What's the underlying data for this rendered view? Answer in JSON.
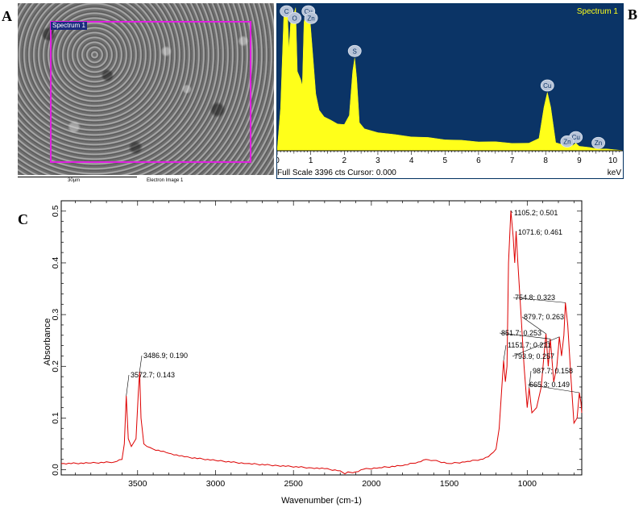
{
  "panel_labels": {
    "a": "A",
    "b": "B",
    "c": "C"
  },
  "sem": {
    "box_label": "Spectrum 1",
    "scale_bar_label": "30µm",
    "image_label": "Electron Image 1"
  },
  "colors": {
    "eds_background": "#0b3466",
    "eds_fill": "#ffff1a",
    "ftir_line": "#dd0000",
    "selection_box": "#e020e0"
  },
  "chart_data": [
    {
      "type": "area",
      "panel": "B",
      "title": "Spectrum 1",
      "xlabel": "keV",
      "xlim": [
        0,
        10.3
      ],
      "x_ticks": [
        0,
        1,
        2,
        3,
        4,
        5,
        6,
        7,
        8,
        9,
        10
      ],
      "footer": "Full Scale 3396 cts Cursor: 0.000",
      "peaks": [
        {
          "label": "C",
          "x": 0.28,
          "y": 1.0
        },
        {
          "label": "O",
          "x": 0.52,
          "y": 0.88
        },
        {
          "label": "Cu",
          "x": 0.93,
          "y": 1.0
        },
        {
          "label": "Zn",
          "x": 1.01,
          "y": 0.88
        },
        {
          "label": "S",
          "x": 2.31,
          "y": 0.65
        },
        {
          "label": "Cu",
          "x": 8.05,
          "y": 0.41
        },
        {
          "label": "Cu",
          "x": 8.9,
          "y": 0.05
        },
        {
          "label": "Zn",
          "x": 8.64,
          "y": 0.02
        },
        {
          "label": "Zn",
          "x": 9.57,
          "y": 0.01
        }
      ],
      "spectrum_x": [
        0.0,
        0.1,
        0.2,
        0.3,
        0.35,
        0.4,
        0.5,
        0.55,
        0.6,
        0.7,
        0.75,
        0.8,
        0.9,
        0.95,
        1.05,
        1.15,
        1.25,
        1.4,
        1.6,
        1.8,
        2.0,
        2.15,
        2.25,
        2.31,
        2.37,
        2.45,
        2.6,
        3.0,
        3.5,
        4.0,
        4.5,
        5.0,
        5.5,
        6.0,
        6.5,
        7.0,
        7.5,
        7.8,
        7.95,
        8.05,
        8.15,
        8.3,
        8.5,
        8.8,
        8.9,
        9.0,
        9.3,
        9.57,
        9.8,
        10.3
      ],
      "spectrum_y": [
        0.0,
        0.3,
        0.95,
        1.0,
        0.7,
        0.9,
        0.95,
        1.0,
        0.55,
        0.5,
        0.45,
        0.9,
        1.0,
        1.0,
        0.7,
        0.4,
        0.28,
        0.24,
        0.21,
        0.19,
        0.18,
        0.25,
        0.55,
        0.65,
        0.5,
        0.2,
        0.15,
        0.13,
        0.11,
        0.1,
        0.09,
        0.08,
        0.07,
        0.065,
        0.06,
        0.055,
        0.05,
        0.09,
        0.3,
        0.41,
        0.3,
        0.06,
        0.04,
        0.04,
        0.05,
        0.035,
        0.02,
        0.015,
        0.01,
        0.005
      ]
    },
    {
      "type": "line",
      "panel": "C",
      "xlabel": "Wavenumber (cm-1)",
      "ylabel": "Absorbance",
      "xlim": [
        3990,
        650
      ],
      "ylim": [
        -0.01,
        0.52
      ],
      "x_ticks": [
        3500,
        3000,
        2500,
        2000,
        1500,
        1000
      ],
      "y_ticks": [
        "0.0",
        "0.1",
        "0.2",
        "0.3",
        "0.4",
        "0.5"
      ],
      "annotations": [
        {
          "label": "3572.7; 0.143",
          "x": 3572.7,
          "y": 0.143
        },
        {
          "label": "3486.9; 0.190",
          "x": 3486.9,
          "y": 0.19
        },
        {
          "label": "1105.2; 0.501",
          "x": 1105.2,
          "y": 0.501
        },
        {
          "label": "1071.6; 0.461",
          "x": 1071.6,
          "y": 0.461
        },
        {
          "label": "754.8; 0.323",
          "x": 754.8,
          "y": 0.323
        },
        {
          "label": "879.7; 0.263",
          "x": 879.7,
          "y": 0.263
        },
        {
          "label": "851.7; 0.253",
          "x": 851.7,
          "y": 0.253
        },
        {
          "label": "1151.7; 0.211",
          "x": 1151.7,
          "y": 0.211
        },
        {
          "label": "793.9; 0.257",
          "x": 793.9,
          "y": 0.257
        },
        {
          "label": "987.7; 0.158",
          "x": 987.7,
          "y": 0.158
        },
        {
          "label": "665.3; 0.149",
          "x": 665.3,
          "y": 0.149
        }
      ],
      "series_x": [
        3990,
        3800,
        3650,
        3600,
        3585,
        3572.7,
        3560,
        3540,
        3510,
        3495,
        3486.9,
        3478,
        3460,
        3440,
        3400,
        3300,
        3200,
        3000,
        2800,
        2600,
        2400,
        2300,
        2200,
        2170,
        2150,
        2120,
        2050,
        1950,
        1800,
        1700,
        1650,
        1600,
        1500,
        1400,
        1300,
        1250,
        1200,
        1180,
        1165,
        1151.7,
        1140,
        1130,
        1120,
        1105.2,
        1090,
        1080,
        1071.6,
        1060,
        1040,
        1020,
        1000,
        987.7,
        970,
        940,
        910,
        890,
        879.7,
        865,
        851.7,
        830,
        810,
        793.9,
        780,
        765,
        754.8,
        740,
        720,
        700,
        680,
        665.3,
        655,
        650
      ],
      "series_y": [
        0.012,
        0.013,
        0.015,
        0.02,
        0.05,
        0.143,
        0.06,
        0.045,
        0.06,
        0.15,
        0.19,
        0.1,
        0.05,
        0.045,
        0.04,
        0.032,
        0.025,
        0.018,
        0.012,
        0.008,
        0.004,
        0.002,
        -0.002,
        -0.008,
        -0.004,
        -0.006,
        0.001,
        0.004,
        0.008,
        0.015,
        0.02,
        0.018,
        0.012,
        0.015,
        0.02,
        0.025,
        0.04,
        0.08,
        0.15,
        0.211,
        0.17,
        0.2,
        0.4,
        0.501,
        0.45,
        0.4,
        0.461,
        0.4,
        0.3,
        0.2,
        0.12,
        0.158,
        0.11,
        0.12,
        0.16,
        0.23,
        0.263,
        0.2,
        0.253,
        0.17,
        0.2,
        0.257,
        0.22,
        0.26,
        0.323,
        0.28,
        0.18,
        0.09,
        0.1,
        0.149,
        0.13,
        0.11
      ]
    }
  ]
}
